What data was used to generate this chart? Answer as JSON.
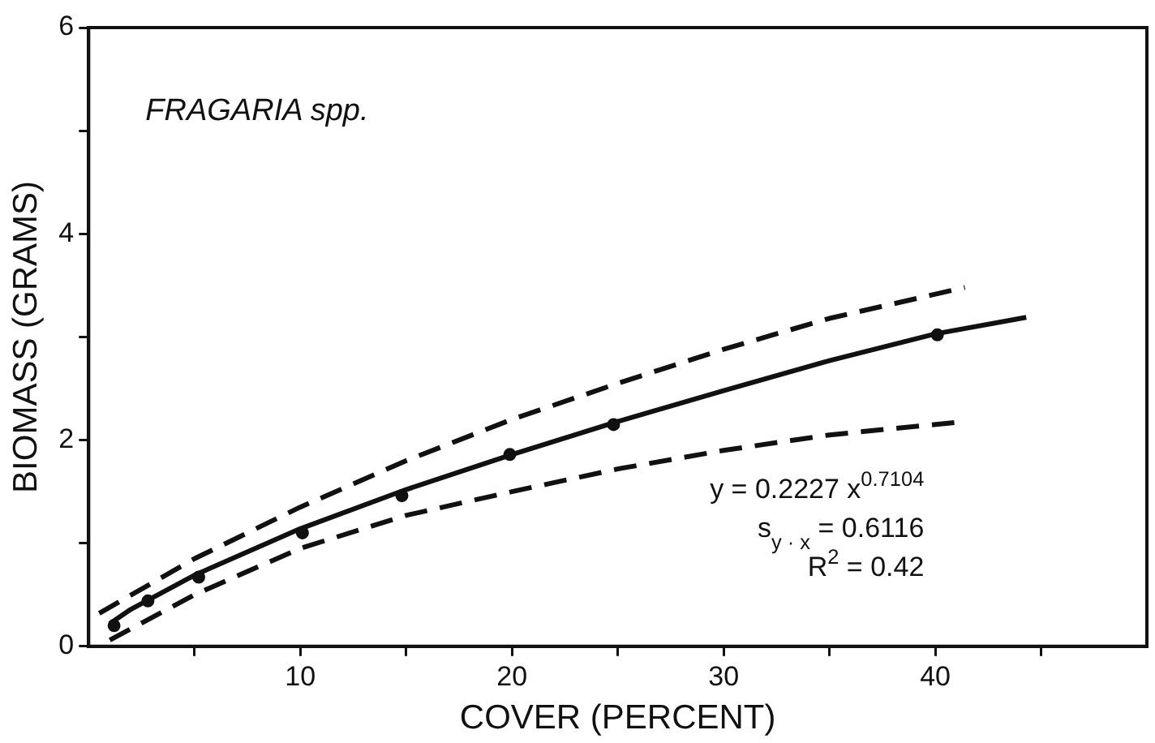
{
  "chart_data": {
    "type": "scatter",
    "title": "FRAGARIA spp.",
    "xlabel": "COVER (PERCENT)",
    "ylabel": "BIOMASS (GRAMS)",
    "xlim": [
      0,
      50
    ],
    "xticks": [
      {
        "value": 5,
        "label": null
      },
      10,
      {
        "value": 15,
        "label": null
      },
      20,
      {
        "value": 25,
        "label": null
      },
      30,
      {
        "value": 35,
        "label": null
      },
      40,
      {
        "value": 45,
        "label": null
      }
    ],
    "ylim": [
      0,
      6
    ],
    "yticks": [
      0,
      {
        "value": 1,
        "label": null
      },
      2,
      {
        "value": 3,
        "label": null
      },
      4,
      {
        "value": 5,
        "label": null
      },
      6
    ],
    "grid": false,
    "legend": false,
    "series": [
      {
        "type": "scatter",
        "color": "#111111",
        "marker": "circle",
        "x": [
          1.2,
          2.8,
          5.2,
          10.1,
          14.8,
          19.9,
          24.8,
          40.1
        ],
        "values": [
          0.2,
          0.44,
          0.67,
          1.1,
          1.46,
          1.86,
          2.15,
          3.02
        ]
      },
      {
        "type": "line",
        "color": "#111111",
        "marker": "none",
        "line_style": "solid",
        "x": [
          1,
          2,
          5,
          10,
          15,
          20,
          25,
          30,
          35,
          40,
          44.3
        ],
        "values": [
          0.22,
          0.36,
          0.69,
          1.14,
          1.52,
          1.86,
          2.18,
          2.48,
          2.77,
          3.03,
          3.19
        ]
      },
      {
        "type": "line",
        "color": "#111111",
        "marker": "none",
        "line_style": "dashed",
        "x": [
          0.5,
          5,
          10,
          15,
          20,
          25,
          30,
          35,
          41.4
        ],
        "values": [
          0.32,
          0.85,
          1.35,
          1.8,
          2.2,
          2.55,
          2.88,
          3.18,
          3.48
        ]
      },
      {
        "type": "line",
        "color": "#111111",
        "marker": "none",
        "line_style": "dashed",
        "x": [
          1,
          5,
          10,
          15,
          20,
          25,
          30,
          35,
          40.9
        ],
        "values": [
          0.06,
          0.5,
          0.95,
          1.27,
          1.5,
          1.72,
          1.9,
          2.05,
          2.17
        ]
      }
    ],
    "annotations": [
      "y = 0.2227 x$^{0.7104}$",
      "s$_{y · x}$ = 0.6116",
      "R$^{2}$ = 0.42"
    ]
  }
}
